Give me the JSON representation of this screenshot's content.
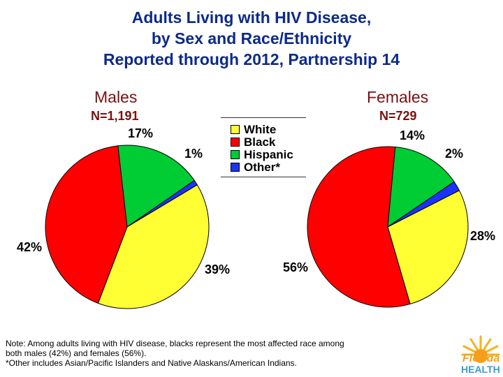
{
  "title": {
    "line1": "Adults Living with HIV Disease,",
    "line2": "by Sex and Race/Ethnicity",
    "line3": "Reported through 2012, Partnership 14"
  },
  "chart_data": [
    {
      "type": "pie",
      "title": "Males",
      "subtitle": "N=1,191",
      "categories": [
        "White",
        "Black",
        "Hispanic",
        "Other*"
      ],
      "values": [
        39,
        42,
        17,
        1
      ],
      "value_labels": [
        "39%",
        "42%",
        "17%",
        "1%"
      ],
      "colors": [
        "#ffff33",
        "#ff0000",
        "#00cc33",
        "#1a33ff"
      ]
    },
    {
      "type": "pie",
      "title": "Females",
      "subtitle": "N=729",
      "categories": [
        "White",
        "Black",
        "Hispanic",
        "Other*"
      ],
      "values": [
        28,
        56,
        14,
        2
      ],
      "value_labels": [
        "28%",
        "56%",
        "14%",
        "2%"
      ],
      "colors": [
        "#ffff33",
        "#ff0000",
        "#00cc33",
        "#1a33ff"
      ]
    }
  ],
  "legend": {
    "items": [
      {
        "label": "White",
        "color": "#ffff33"
      },
      {
        "label": "Black",
        "color": "#ff0000"
      },
      {
        "label": "Hispanic",
        "color": "#00cc33"
      },
      {
        "label": "Other*",
        "color": "#1a33ff"
      }
    ]
  },
  "note": {
    "line1": "Note:  Among adults living with HIV disease, blacks represent the most affected race among",
    "line2": "both males (42%) and females (56%).",
    "line3": "*Other includes Asian/Pacific Islanders and Native Alaskans/American Indians."
  },
  "logo": {
    "word1": "Florida",
    "word2": "HEALTH",
    "color_word1": "#f5a31a",
    "color_word2": "#3b9bd6"
  }
}
